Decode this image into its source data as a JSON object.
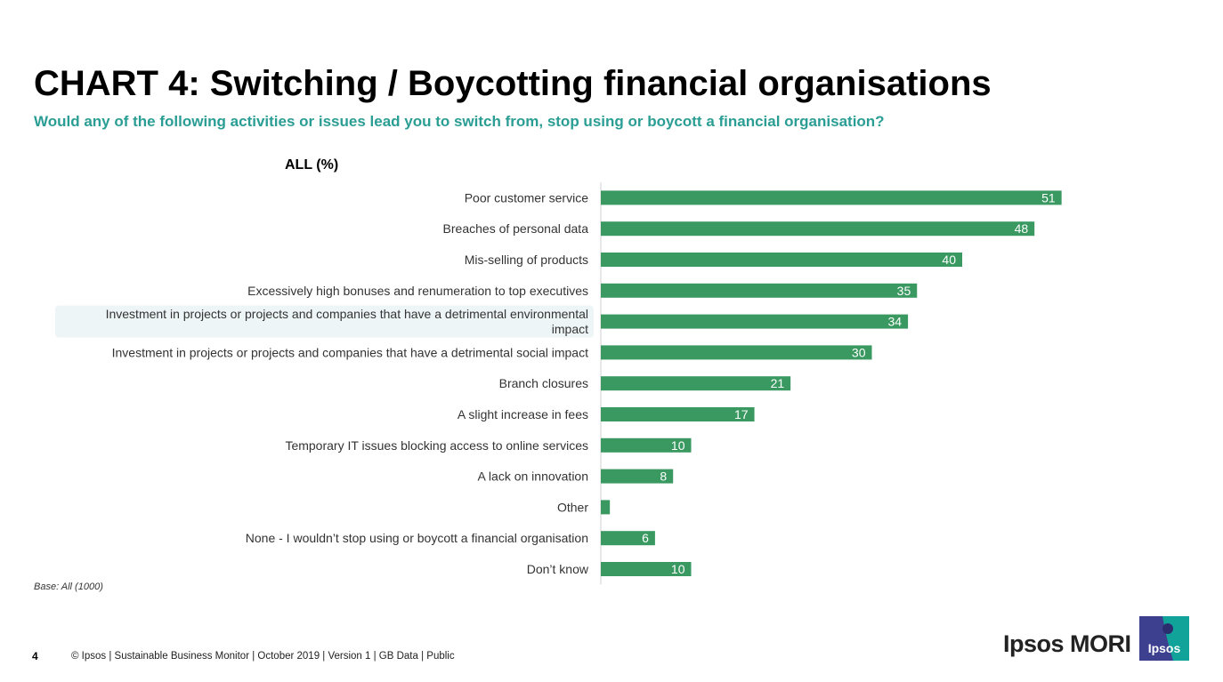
{
  "header": {
    "title": "CHART 4: Switching / Boycotting financial organisations",
    "subtitle": "Would any of the following activities or issues lead you to switch from, stop using or boycott a financial organisation?"
  },
  "chart_data": {
    "type": "bar",
    "orientation": "horizontal",
    "column_header": "ALL (%)",
    "categories": [
      "Poor customer service",
      "Breaches of personal data",
      "Mis-selling of products",
      "Excessively high bonuses and renumeration to top executives",
      "Investment in projects or projects and companies that have a detrimental environmental impact",
      "Investment in projects or projects and companies that have a detrimental social impact",
      "Branch closures",
      "A slight increase in fees",
      "Temporary IT issues blocking access to online services",
      "A lack on innovation",
      "Other",
      "None - I wouldn’t stop using or boycott a financial organisation",
      "Don’t know"
    ],
    "values": [
      51,
      48,
      40,
      35,
      34,
      30,
      21,
      17,
      10,
      8,
      1,
      6,
      10
    ],
    "value_labels": [
      "51",
      "48",
      "40",
      "35",
      "34",
      "30",
      "21",
      "17",
      "10",
      "8",
      "",
      "6",
      "10"
    ],
    "highlighted_category_index": 4,
    "bar_color": "#3a9960",
    "highlight_color": "#eef5f7",
    "xlim": [
      0,
      100
    ],
    "grid": false,
    "legend": "none"
  },
  "base_note": "Base: All (1000)",
  "footer": {
    "page_number": "4",
    "text": "© Ipsos | Sustainable Business Monitor | October 2019 | Version 1 | GB Data | Public",
    "brand": "Ipsos MORI",
    "logo_text": "Ipsos"
  },
  "colors": {
    "subtitle": "#2a9d94",
    "logo_dark": "#3d3f8f",
    "logo_teal": "#11a39a"
  }
}
